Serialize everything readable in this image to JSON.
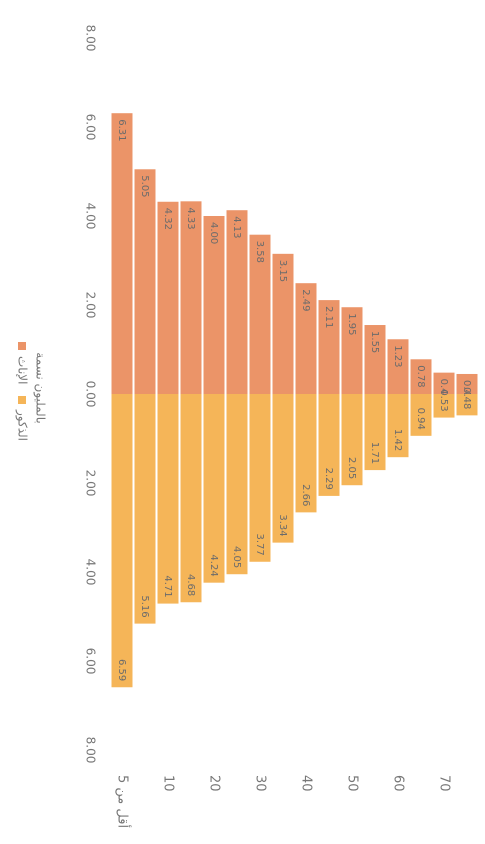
{
  "chart_data": {
    "type": "bar",
    "legend_title": "بالمليون نسمة",
    "categories": [
      "أقل من 5",
      null,
      "10",
      null,
      "20",
      null,
      "30",
      null,
      "40",
      null,
      "50",
      null,
      "60",
      null,
      "70",
      null
    ],
    "series": [
      {
        "name": "الإناث",
        "color": "#eb9468",
        "values": [
          6.31,
          5.05,
          4.32,
          4.33,
          4.0,
          4.13,
          3.58,
          3.15,
          2.49,
          2.11,
          1.95,
          1.55,
          1.23,
          0.78,
          0.48,
          0.45
        ],
        "value_labels": [
          "6.31",
          "5.05",
          "4.32",
          "4.33",
          "4.00",
          "4.13",
          "3.58",
          "3.15",
          "2.49",
          "2.11",
          "1.95",
          "1.55",
          "1.23",
          "0.78",
          "0.48",
          "0.45"
        ]
      },
      {
        "name": "الذكور",
        "color": "#f5b558",
        "values": [
          6.59,
          5.16,
          4.71,
          4.68,
          4.24,
          4.05,
          3.77,
          3.34,
          2.66,
          2.29,
          2.05,
          1.71,
          1.42,
          0.94,
          0.53,
          0.48
        ],
        "value_labels": [
          "6.59",
          "5.16",
          "4.71",
          "4.68",
          "4.24",
          "4.05",
          "3.77",
          "3.34",
          "2.66",
          "2.29",
          "2.05",
          "1.71",
          "1.42",
          "0.94",
          "0.53",
          "0.48"
        ]
      }
    ],
    "xlim": [
      -8,
      8
    ],
    "xticks": [
      {
        "value": -8,
        "label": "8.00"
      },
      {
        "value": -6,
        "label": "6.00"
      },
      {
        "value": -4,
        "label": "4.00"
      },
      {
        "value": -2,
        "label": "2.00"
      },
      {
        "value": 0,
        "label": "0.00"
      },
      {
        "value": 2,
        "label": "2.00"
      },
      {
        "value": 4,
        "label": "4.00"
      },
      {
        "value": 6,
        "label": "6.00"
      },
      {
        "value": 8,
        "label": "8.00"
      }
    ]
  }
}
